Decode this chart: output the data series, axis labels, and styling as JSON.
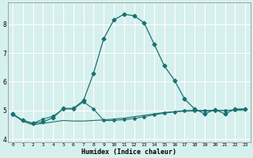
{
  "xlabel": "Humidex (Indice chaleur)",
  "xlim": [
    -0.5,
    23.5
  ],
  "ylim": [
    3.9,
    8.75
  ],
  "xticks": [
    0,
    1,
    2,
    3,
    4,
    5,
    6,
    7,
    8,
    9,
    10,
    11,
    12,
    13,
    14,
    15,
    16,
    17,
    18,
    19,
    20,
    21,
    22,
    23
  ],
  "yticks": [
    4,
    5,
    6,
    7,
    8
  ],
  "bg_color": "#d6f0ee",
  "grid_color": "#ffffff",
  "line_color": "#1a7070",
  "curve1_x": [
    0,
    1,
    2,
    3,
    4,
    5,
    6,
    7,
    8,
    9,
    10,
    11,
    12,
    13,
    14,
    15,
    16,
    17,
    18,
    19,
    20,
    21,
    22,
    23
  ],
  "curve1_y": [
    4.88,
    4.62,
    4.5,
    4.55,
    4.6,
    4.65,
    4.63,
    4.63,
    4.65,
    4.67,
    4.7,
    4.73,
    4.78,
    4.83,
    4.88,
    4.93,
    4.96,
    4.97,
    4.98,
    4.98,
    4.99,
    5.0,
    5.0,
    5.0
  ],
  "curve2_x": [
    0,
    1,
    2,
    3,
    4,
    5,
    6,
    7,
    8,
    9,
    10,
    11,
    12,
    13,
    14,
    15,
    16,
    17,
    18,
    19,
    20,
    21,
    22,
    23
  ],
  "curve2_y": [
    4.85,
    4.65,
    4.55,
    4.7,
    4.8,
    5.05,
    5.05,
    5.3,
    5.05,
    4.65,
    4.65,
    4.68,
    4.72,
    4.78,
    4.85,
    4.9,
    4.95,
    5.0,
    5.0,
    5.0,
    5.0,
    5.0,
    5.02,
    5.05
  ],
  "curve3_x": [
    0,
    1,
    2,
    3,
    4,
    5,
    6,
    7,
    8,
    9,
    10,
    11,
    12,
    13,
    14,
    15,
    16,
    17,
    18,
    19,
    20,
    21,
    22,
    23
  ],
  "curve3_y": [
    4.88,
    4.65,
    4.55,
    4.6,
    4.75,
    5.07,
    5.07,
    5.35,
    6.3,
    7.5,
    8.15,
    8.35,
    8.3,
    8.05,
    7.3,
    6.55,
    6.05,
    5.4,
    5.05,
    4.88,
    5.03,
    4.88,
    5.05,
    5.05
  ]
}
